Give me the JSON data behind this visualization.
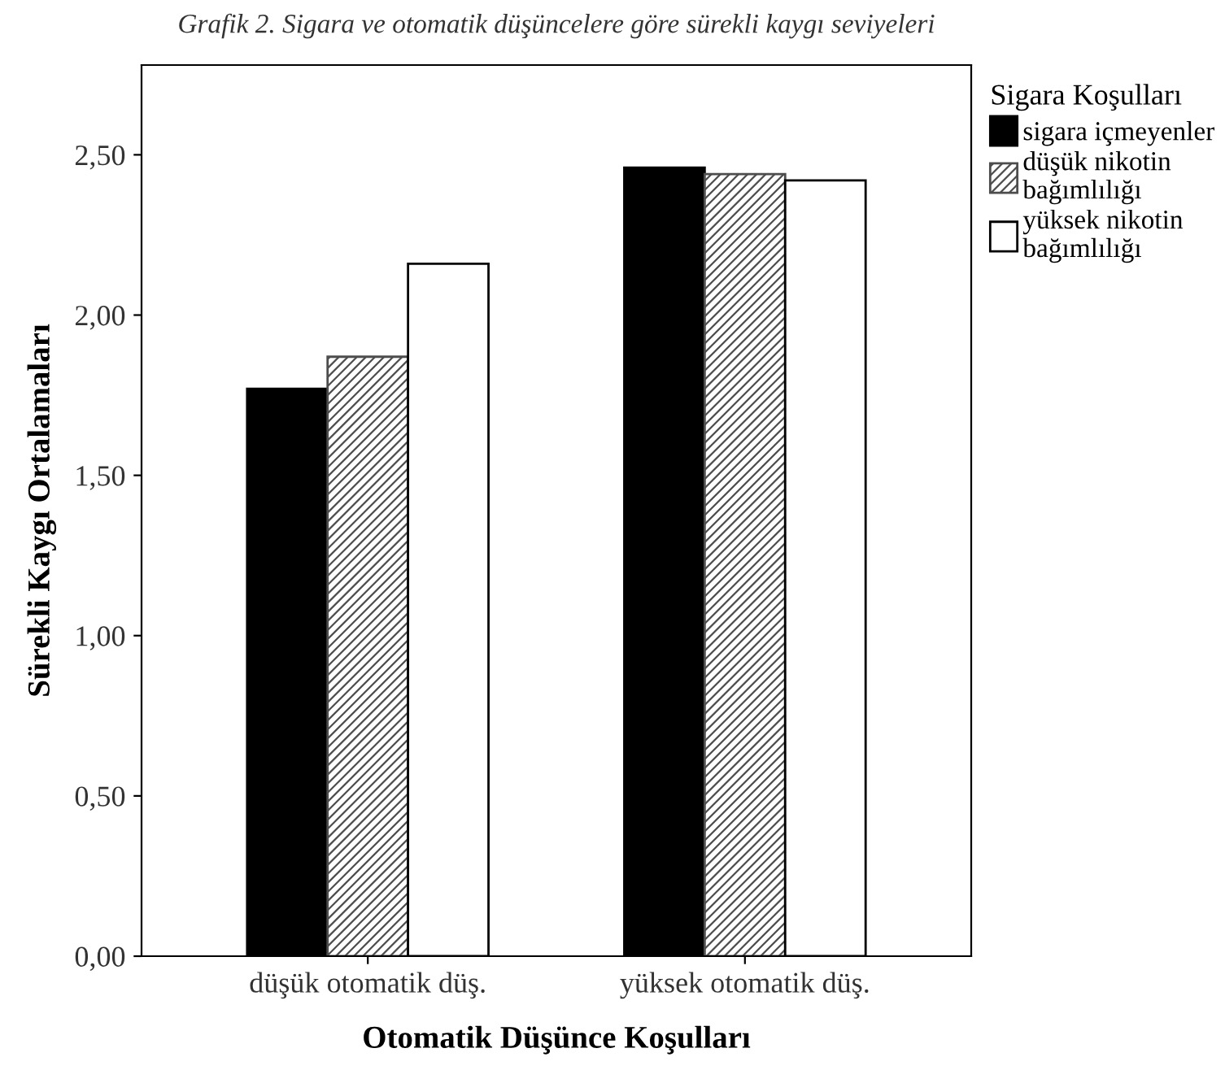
{
  "chart_data": {
    "type": "bar",
    "title": "Grafik 2. Sigara ve otomatik düşüncelere göre sürekli kaygı seviyeleri",
    "xlabel": "Otomatik Düşünce Koşulları",
    "ylabel": "Sürekli Kaygı Ortalamaları",
    "legend_title": "Sigara Koşulları",
    "categories": [
      "düşük otomatik düş.",
      "yüksek otomatik düş."
    ],
    "series": [
      {
        "name": "sigara içmeyenler",
        "color": "#000000",
        "values": [
          1.77,
          2.46
        ]
      },
      {
        "name": "düşük nikotin\nbağımlılığı",
        "color": "#4d4d4d",
        "values": [
          1.87,
          2.44
        ]
      },
      {
        "name": "yüksek nikotin\nbağımlılığı",
        "color": "#ffffff",
        "values": [
          2.16,
          2.42
        ]
      }
    ],
    "ylim": [
      0,
      2.78
    ],
    "yticks": [
      {
        "value": 0,
        "label": "0,00"
      },
      {
        "value": 0.5,
        "label": "0,50"
      },
      {
        "value": 1,
        "label": "1,00"
      },
      {
        "value": 1.5,
        "label": "1,50"
      },
      {
        "value": 2,
        "label": "2,00"
      },
      {
        "value": 2.5,
        "label": "2,50"
      }
    ],
    "grid": false,
    "legend": "top right"
  }
}
